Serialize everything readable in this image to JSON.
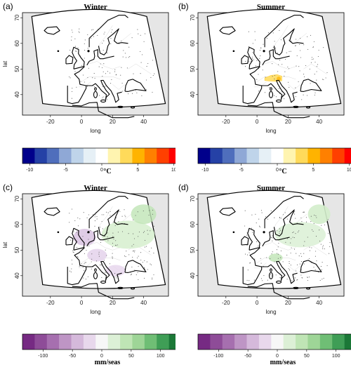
{
  "panels": [
    {
      "id": "a",
      "label": "(a)",
      "title": "Winter",
      "variable": "temperature",
      "ylabel": "lat",
      "xlabel": "long",
      "shading": "none"
    },
    {
      "id": "b",
      "label": "(b)",
      "title": "Summer",
      "variable": "temperature",
      "ylabel": "",
      "xlabel": "long",
      "shading": "yellow-alps"
    },
    {
      "id": "c",
      "label": "(c)",
      "title": "Winter",
      "variable": "precipitation",
      "ylabel": "lat",
      "xlabel": "long",
      "shading": "purple-green"
    },
    {
      "id": "d",
      "label": "(d)",
      "title": "Summer",
      "variable": "precipitation",
      "ylabel": "",
      "xlabel": "long",
      "shading": "light-green"
    }
  ],
  "axes": {
    "x_ticks": [
      "-20",
      "0",
      "20",
      "40"
    ],
    "y_ticks": [
      "40",
      "50",
      "60",
      "70"
    ],
    "xlim": [
      -38,
      56
    ],
    "ylim": [
      32,
      72
    ]
  },
  "colorbars": {
    "temperature": {
      "unit": "°C",
      "ticks": [
        "-10",
        "-5",
        "0",
        "5",
        "10"
      ],
      "range": [
        -11,
        11
      ],
      "colors": [
        "#00008B",
        "#2541A6",
        "#4F6EBC",
        "#8FA8D6",
        "#BFD4EA",
        "#E6F0F6",
        "#FFFFFF",
        "#FFF4B0",
        "#FFDA5A",
        "#FFB300",
        "#FF8000",
        "#FF4000",
        "#FF0000"
      ]
    },
    "precipitation": {
      "unit": "mm/seas",
      "ticks": [
        "-100",
        "-50",
        "0",
        "50",
        "100"
      ],
      "range": [
        -135,
        135
      ],
      "colors": [
        "#762A83",
        "#8E4C98",
        "#A66FAF",
        "#BE95C5",
        "#D5B9DB",
        "#E8D8EC",
        "#F7F7F7",
        "#DCF0D6",
        "#BFE5B5",
        "#9ED597",
        "#6FBE75",
        "#3F9E56",
        "#1B7837"
      ]
    }
  }
}
